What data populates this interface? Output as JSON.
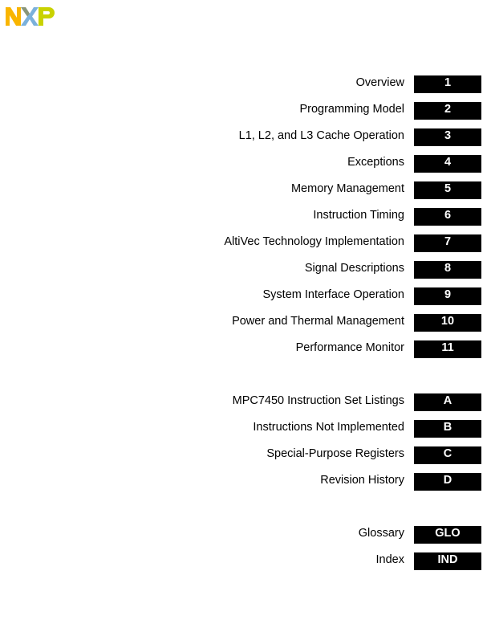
{
  "logo": {
    "text": "NXP",
    "colors": {
      "n": "#f9b500",
      "x": "#7bb1db",
      "x_dark": "#958437",
      "p": "#c9d200"
    }
  },
  "sections": [
    {
      "label": "Overview",
      "tab": "1"
    },
    {
      "label": "Programming Model",
      "tab": "2"
    },
    {
      "label": "L1, L2, and L3 Cache Operation",
      "tab": "3"
    },
    {
      "label": "Exceptions",
      "tab": "4"
    },
    {
      "label": "Memory Management",
      "tab": "5"
    },
    {
      "label": "Instruction Timing",
      "tab": "6"
    },
    {
      "label": "AltiVec Technology Implementation",
      "tab": "7"
    },
    {
      "label": "Signal Descriptions",
      "tab": "8"
    },
    {
      "label": "System Interface Operation",
      "tab": "9"
    },
    {
      "label": "Power and Thermal Management",
      "tab": "10"
    },
    {
      "label": "Performance Monitor",
      "tab": "11"
    }
  ],
  "appendices": [
    {
      "label": "MPC7450 Instruction Set Listings",
      "tab": "A"
    },
    {
      "label": "Instructions Not Implemented",
      "tab": "B"
    },
    {
      "label": "Special-Purpose Registers",
      "tab": "C"
    },
    {
      "label": "Revision History",
      "tab": "D"
    }
  ],
  "back_matter": [
    {
      "label": "Glossary",
      "tab": "GLO"
    },
    {
      "label": "Index",
      "tab": "IND"
    }
  ]
}
